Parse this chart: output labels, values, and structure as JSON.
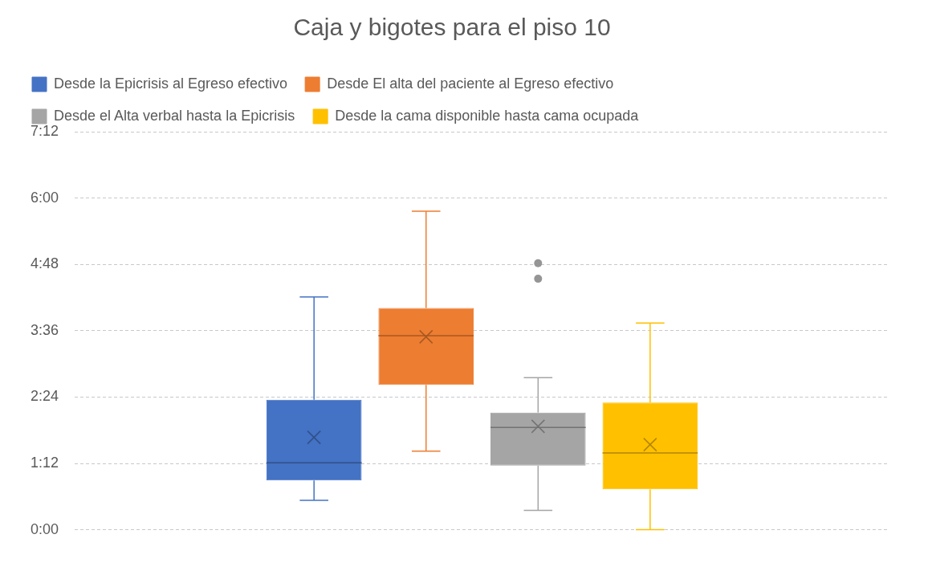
{
  "chart_data": {
    "type": "box",
    "title": "Caja y bigotes para el piso 10",
    "categories": [
      null
    ],
    "series": [
      {
        "name": "Desde la Epicrisis al Egreso efectivo",
        "color": "#4472c4",
        "boxes": [
          {
            "low": 0.53,
            "q1": 0.89,
            "median": 1.21,
            "q3": 2.35,
            "high": 4.21,
            "mean": 1.67
          }
        ]
      },
      {
        "name": "Desde El alta del paciente al Egreso efectivo",
        "color": "#ed7d31",
        "boxes": [
          {
            "low": 1.42,
            "q1": 2.62,
            "median": 3.51,
            "q3": 4.01,
            "high": 5.76,
            "mean": 3.49
          }
        ]
      },
      {
        "name": "Desde el Alta verbal hasta la Epicrisis",
        "color": "#a5a5a5",
        "boxes": [
          {
            "low": 0.35,
            "q1": 1.16,
            "median": 1.85,
            "q3": 2.12,
            "high": 2.75,
            "mean": 1.87,
            "outliers": [
              4.54,
              4.82
            ]
          }
        ]
      },
      {
        "name": "Desde la cama disponible hasta cama ocupada",
        "color": "#ffc000",
        "boxes": [
          {
            "low": 0,
            "q1": 0.73,
            "median": 1.39,
            "q3": 2.3,
            "high": 3.74,
            "mean": 1.54
          }
        ]
      }
    ],
    "ylim": [
      0,
      7.2
    ],
    "yticks": [
      {
        "value": 0,
        "label": "0:00"
      },
      {
        "value": 1.2,
        "label": "1:12"
      },
      {
        "value": 2.4,
        "label": "2:24"
      },
      {
        "value": 3.6,
        "label": "3:36"
      },
      {
        "value": 4.8,
        "label": "4:48"
      },
      {
        "value": 6,
        "label": "6:00"
      },
      {
        "value": 7.2,
        "label": "7:12"
      }
    ],
    "grid": "y",
    "legend": "top"
  }
}
